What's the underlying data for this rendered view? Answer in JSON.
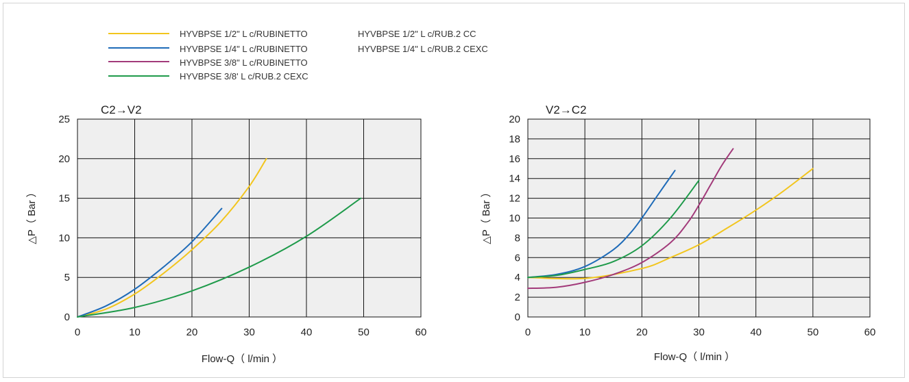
{
  "legend": {
    "items": [
      {
        "label": "HYVBPSE 1/2\" L c/RUBINETTO",
        "color": "#f2c51d"
      },
      {
        "label": "HYVBPSE 1/4\" L c/RUBINETTO",
        "color": "#1e6bb8"
      },
      {
        "label": "HYVBPSE 3/8\" L c/RUBINETTO",
        "color": "#a23a7a"
      },
      {
        "label": "HYVBPSE 3/8' L c/RUB.2 CEXC",
        "color": "#1e9a4a"
      }
    ],
    "extra": [
      "HYVBPSE 1/2\" L c/RUB.2 CC",
      "HYVBPSE 1/4\" L c/RUB.2 CEXC"
    ]
  },
  "chart_data": [
    {
      "type": "line",
      "title": "C2→V2",
      "xlabel": "Flow-Q（ l/min ）",
      "ylabel": "△P（ Bar ）",
      "xlim": [
        0,
        60
      ],
      "ylim": [
        0,
        25
      ],
      "xticks": [
        0,
        10,
        20,
        30,
        40,
        50,
        60
      ],
      "yticks": [
        0,
        5,
        10,
        15,
        20,
        25
      ],
      "grid": true,
      "series": [
        {
          "color": "#f2c51d",
          "x": [
            0,
            5,
            10,
            15,
            20,
            25,
            30,
            33
          ],
          "y": [
            0,
            1.0,
            2.9,
            5.5,
            8.5,
            12.0,
            16.5,
            20.0
          ]
        },
        {
          "color": "#1e6bb8",
          "x": [
            0,
            5,
            10,
            15,
            20,
            25.2
          ],
          "y": [
            0,
            1.4,
            3.5,
            6.3,
            9.5,
            13.7
          ]
        },
        {
          "color": "#1e9a4a",
          "x": [
            0,
            10,
            20,
            30,
            40,
            49.5
          ],
          "y": [
            0,
            1.2,
            3.3,
            6.3,
            10.2,
            15.0
          ]
        }
      ]
    },
    {
      "type": "line",
      "title": "V2→C2",
      "xlabel": "Flow-Q（ l/min ）",
      "ylabel": "△P（ Bar ）",
      "xlim": [
        0,
        60
      ],
      "ylim": [
        0,
        20
      ],
      "xticks": [
        0,
        10,
        20,
        30,
        40,
        50,
        60
      ],
      "yticks": [
        0,
        2,
        4,
        6,
        8,
        10,
        12,
        14,
        16,
        18,
        20
      ],
      "grid": true,
      "series": [
        {
          "color": "#f2c51d",
          "x": [
            0,
            10,
            20,
            25,
            30,
            35,
            40,
            45,
            50
          ],
          "y": [
            4.0,
            3.9,
            4.9,
            6.0,
            7.3,
            9.0,
            10.8,
            12.8,
            15.0
          ]
        },
        {
          "color": "#1e6bb8",
          "x": [
            0,
            5,
            10,
            15,
            18,
            20,
            23,
            25.8
          ],
          "y": [
            4.0,
            4.3,
            5.1,
            6.8,
            8.5,
            10.0,
            12.5,
            14.8
          ]
        },
        {
          "color": "#a23a7a",
          "x": [
            0,
            5,
            10,
            15,
            20,
            25,
            28,
            30,
            32,
            34,
            36
          ],
          "y": [
            2.9,
            3.0,
            3.5,
            4.3,
            5.5,
            7.5,
            9.5,
            11.3,
            13.3,
            15.3,
            17.0
          ]
        },
        {
          "color": "#1e9a4a",
          "x": [
            0,
            5,
            10,
            15,
            20,
            25,
            30
          ],
          "y": [
            4.0,
            4.2,
            4.8,
            5.6,
            7.2,
            10.0,
            13.8
          ]
        }
      ]
    }
  ]
}
